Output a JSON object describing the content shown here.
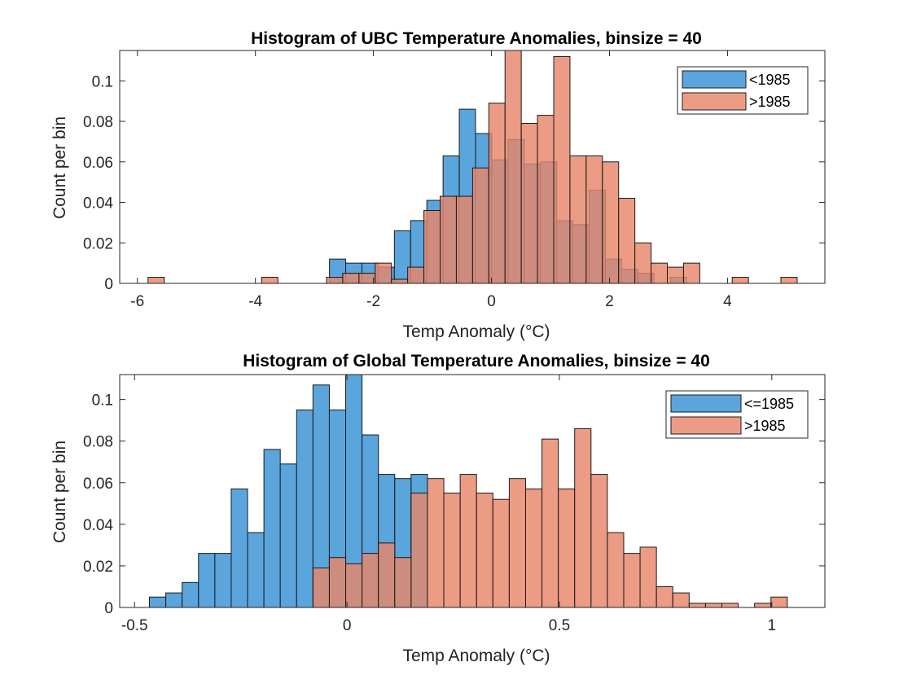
{
  "chart_data": [
    {
      "type": "bar",
      "title": "Histogram of UBC Temperature Anomalies, binsize = 40",
      "xlabel": "Temp Anomaly (°C)",
      "ylabel": "Count per bin",
      "xlim": [
        -6.3,
        5.65
      ],
      "ylim": [
        0,
        0.115
      ],
      "xticks": [
        -6,
        -4,
        -2,
        0,
        2,
        4
      ],
      "xtick_labels": [
        "-6",
        "-4",
        "-2",
        "0",
        "2",
        "4"
      ],
      "yticks": [
        0,
        0.02,
        0.04,
        0.06,
        0.08,
        0.1
      ],
      "ytick_labels": [
        "0",
        "0.02",
        "0.04",
        "0.06",
        "0.08",
        "0.1"
      ],
      "legend_position": "top-right",
      "bin_width": 0.275,
      "series": [
        {
          "name": "<1985",
          "color": "#5aa5dc",
          "x_start": -2.745,
          "values": [
            0.012,
            0.01,
            0.01,
            0.008,
            0.026,
            0.031,
            0.041,
            0.063,
            0.086,
            0.074,
            0.061,
            0.071,
            0.059,
            0.06,
            0.031,
            0.029,
            0.046,
            0.012,
            0.007,
            0.005,
            0,
            0.003
          ]
        },
        {
          "name": ">1985",
          "color": "#e8866a",
          "x_start": -5.82,
          "values": [
            0.003,
            0,
            0,
            0,
            0,
            0,
            0,
            0.003,
            0,
            0,
            0,
            0.003,
            0.005,
            0.005,
            0.01,
            0.002,
            0.008,
            0.036,
            0.043,
            0.043,
            0.057,
            0.089,
            0.115,
            0.079,
            0.083,
            0.112,
            0.063,
            0.063,
            0.06,
            0.042,
            0.02,
            0.01,
            0.008,
            0.01,
            0,
            0,
            0.003,
            0,
            0,
            0.003
          ]
        }
      ]
    },
    {
      "type": "bar",
      "title": "Histogram of Global Temperature Anomalies, binsize = 40",
      "xlabel": "Temp Anomaly (°C)",
      "ylabel": "Count per bin",
      "xlim": [
        -0.535,
        1.125
      ],
      "ylim": [
        0,
        0.112
      ],
      "xticks": [
        -0.5,
        0,
        0.5,
        1
      ],
      "xtick_labels": [
        "-0.5",
        "0",
        "0.5",
        "1"
      ],
      "yticks": [
        0,
        0.02,
        0.04,
        0.06,
        0.08,
        0.1
      ],
      "ytick_labels": [
        "0",
        "0.02",
        "0.04",
        "0.06",
        "0.08",
        "0.1"
      ],
      "legend_position": "top-right",
      "bin_width": 0.0385,
      "series": [
        {
          "name": "<=1985",
          "color": "#5aa5dc",
          "x_start": -0.465,
          "values": [
            0.005,
            0.007,
            0.012,
            0.026,
            0.026,
            0.057,
            0.036,
            0.076,
            0.069,
            0.095,
            0.107,
            0.095,
            0.112,
            0.083,
            0.064,
            0.062,
            0.064
          ]
        },
        {
          "name": ">1985",
          "color": "#e8866a",
          "x_start": -0.08,
          "values": [
            0.019,
            0.024,
            0.021,
            0.026,
            0.031,
            0.024,
            0.055,
            0.062,
            0.055,
            0.064,
            0.055,
            0.052,
            0.062,
            0.057,
            0.081,
            0.057,
            0.086,
            0.064,
            0.036,
            0.026,
            0.029,
            0.01,
            0.007,
            0.002,
            0.002,
            0.002,
            0,
            0.002,
            0.005
          ]
        }
      ]
    }
  ]
}
